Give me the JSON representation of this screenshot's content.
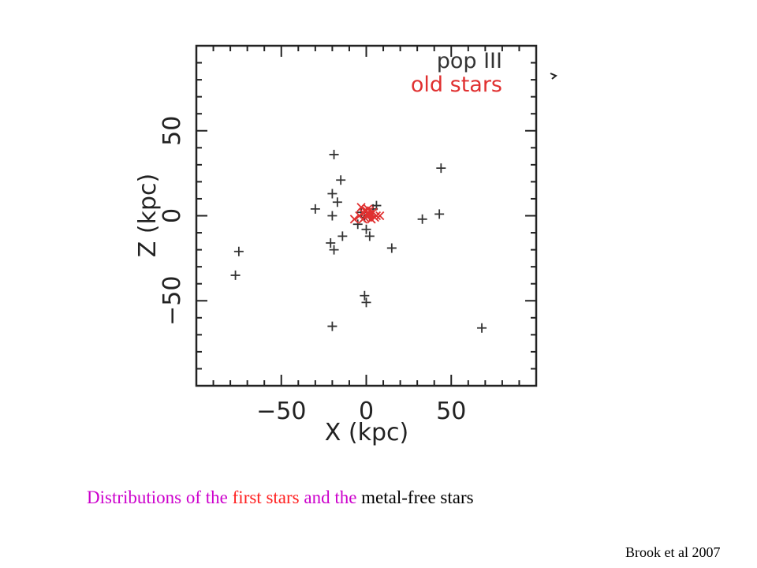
{
  "chart_data": {
    "type": "scatter",
    "xlabel": "X (kpc)",
    "ylabel": "Z (kpc)",
    "xlim": [
      -100,
      100
    ],
    "ylim": [
      -100,
      100
    ],
    "xticks": [
      -50,
      0,
      50
    ],
    "yticks": [
      -50,
      0,
      50
    ],
    "xtick_labels": [
      "−50",
      "0",
      "50"
    ],
    "ytick_labels": [
      "−50",
      "0",
      "50"
    ],
    "grid": false,
    "legend_position": "top-right",
    "series": [
      {
        "name": "pop III",
        "marker": "plus",
        "color": "#333333",
        "points": [
          [
            -19,
            36
          ],
          [
            -15,
            21
          ],
          [
            -20,
            13
          ],
          [
            -17,
            8
          ],
          [
            -30,
            4
          ],
          [
            -20,
            0
          ],
          [
            -14,
            -12
          ],
          [
            -5,
            -5
          ],
          [
            0,
            -8
          ],
          [
            2,
            -12
          ],
          [
            -3,
            2
          ],
          [
            4,
            4
          ],
          [
            6,
            6
          ],
          [
            -21,
            -16
          ],
          [
            -19,
            -20
          ],
          [
            15,
            -19
          ],
          [
            33,
            -2
          ],
          [
            43,
            1
          ],
          [
            44,
            28
          ],
          [
            -75,
            -21
          ],
          [
            -77,
            -35
          ],
          [
            -1,
            -47
          ],
          [
            0,
            -51
          ],
          [
            -20,
            -65
          ],
          [
            68,
            -66
          ],
          [
            2,
            0
          ],
          [
            -1,
            -1
          ]
        ]
      },
      {
        "name": "old stars",
        "marker": "x",
        "color": "#e03030",
        "points": [
          [
            -3,
            5
          ],
          [
            0,
            3
          ],
          [
            2,
            1
          ],
          [
            -1,
            -1
          ],
          [
            -7,
            -2
          ],
          [
            6,
            0
          ],
          [
            8,
            0
          ],
          [
            3,
            -2
          ],
          [
            -2,
            2
          ],
          [
            1,
            4
          ],
          [
            4,
            2
          ],
          [
            -4,
            0
          ],
          [
            0,
            0
          ],
          [
            2,
            3
          ],
          [
            -2,
            -2
          ],
          [
            5,
            -1
          ],
          [
            1,
            1
          ],
          [
            -1,
            3
          ]
        ]
      }
    ]
  },
  "legend": [
    {
      "label": "pop III",
      "color": "#333333"
    },
    {
      "label": "old stars",
      "color": "#e03030"
    }
  ],
  "caption": {
    "parts": [
      {
        "text": "Distributions of the ",
        "color": "#cc00cc"
      },
      {
        "text": "first stars",
        "color": "#ff2020"
      },
      {
        "text": " and the ",
        "color": "#cc00cc"
      },
      {
        "text": "metal-free stars",
        "color": "#000000"
      }
    ]
  },
  "credit": "Brook et al 2007"
}
